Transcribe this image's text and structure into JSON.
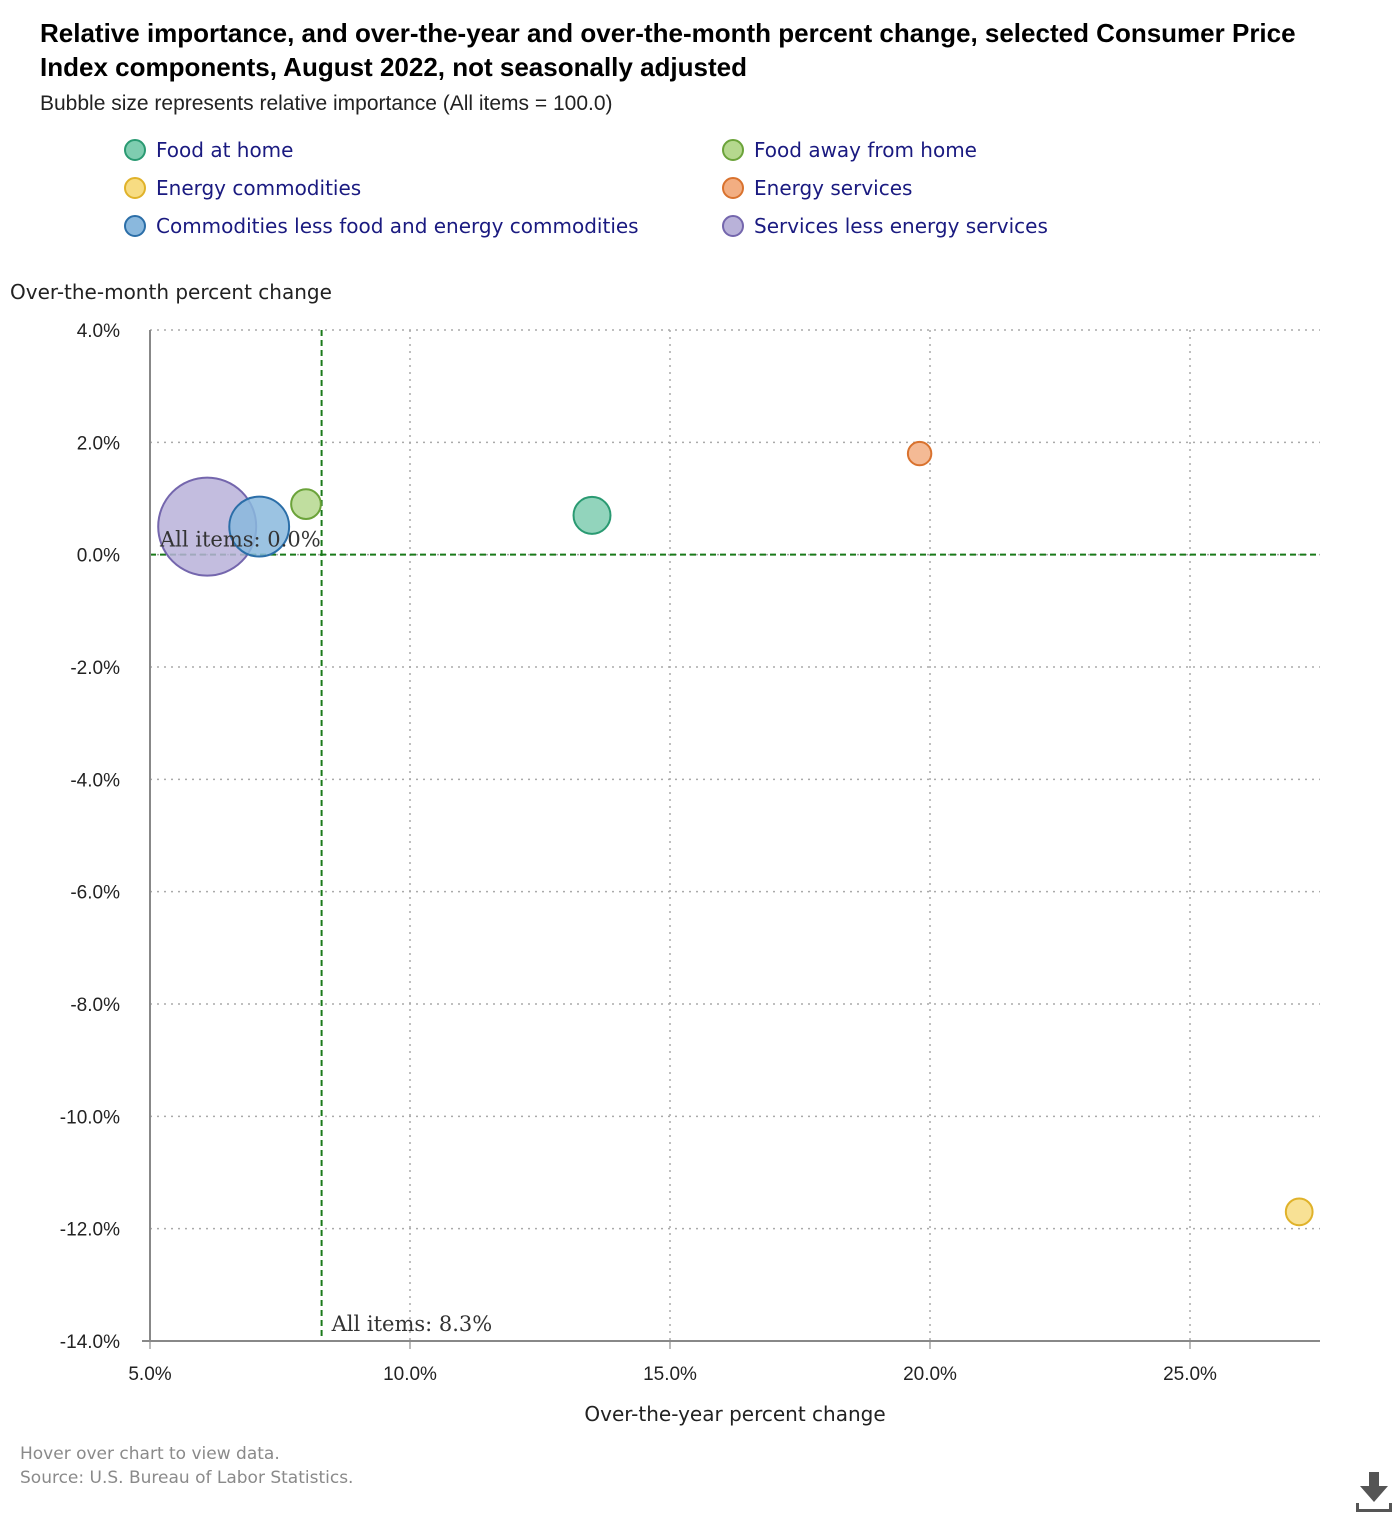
{
  "title": "Relative importance, and over-the-year and over-the-month percent change, selected Consumer Price Index components, August 2022, not seasonally adjusted",
  "subtitle": "Bubble size represents relative importance (All items = 100.0)",
  "footer": {
    "hint": "Hover over chart to view data.",
    "source": "Source: U.S. Bureau of Labor Statistics."
  },
  "icons": {
    "download": "download-icon"
  },
  "chart_data": {
    "type": "scatter",
    "xlabel": "Over-the-year percent change",
    "ylabel": "Over-the-month percent change",
    "xlim": [
      5.0,
      27.5
    ],
    "ylim": [
      -14.0,
      4.0
    ],
    "x_ticks": [
      5,
      10,
      15,
      20,
      25
    ],
    "x_tick_labels": [
      "5.0%",
      "10.0%",
      "15.0%",
      "20.0%",
      "25.0%"
    ],
    "y_ticks": [
      4,
      2,
      0,
      -2,
      -4,
      -6,
      -8,
      -10,
      -12,
      -14
    ],
    "y_tick_labels": [
      "4.0%",
      "2.0%",
      "0.0%",
      "-2.0%",
      "-4.0%",
      "-6.0%",
      "-8.0%",
      "-10.0%",
      "-12.0%",
      "-14.0%"
    ],
    "grid": true,
    "legend_position": "top",
    "reference_lines": [
      {
        "axis": "x",
        "value": 8.3,
        "label": "All items: 8.3%"
      },
      {
        "axis": "y",
        "value": 0.0,
        "label": "All items: 0.0%"
      }
    ],
    "series": [
      {
        "name": "Food at home",
        "x": 13.5,
        "y": 0.7,
        "importance": 8.2,
        "color": "#7fcdb0",
        "stroke": "#2a9a72"
      },
      {
        "name": "Food away from home",
        "x": 8.0,
        "y": 0.9,
        "importance": 5.3,
        "color": "#b5d88e",
        "stroke": "#6ba33a"
      },
      {
        "name": "Energy commodities",
        "x": 27.1,
        "y": -11.7,
        "importance": 4.3,
        "color": "#f7dc82",
        "stroke": "#e0b22a"
      },
      {
        "name": "Energy services",
        "x": 19.8,
        "y": 1.8,
        "importance": 3.3,
        "color": "#f2ae82",
        "stroke": "#d9722e"
      },
      {
        "name": "Commodities less food and energy commodities",
        "x": 7.1,
        "y": 0.5,
        "importance": 21.5,
        "color": "#8ab8dd",
        "stroke": "#2b6ea8"
      },
      {
        "name": "Services less energy services",
        "x": 6.1,
        "y": 0.5,
        "importance": 57.7,
        "color": "#b9b2d9",
        "stroke": "#7466ad"
      }
    ]
  }
}
